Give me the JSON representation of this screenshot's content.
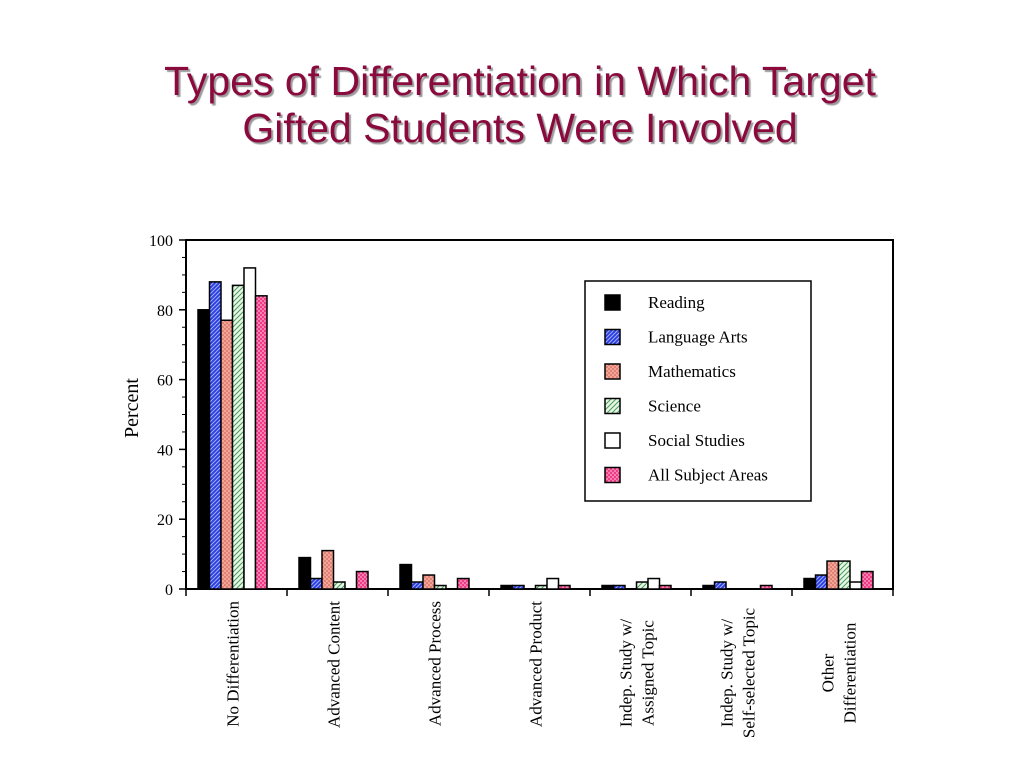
{
  "slide": {
    "title_line1": "Types of Differentiation in Which Target",
    "title_line2": "Gifted Students Were Involved"
  },
  "chart_data": {
    "type": "bar",
    "title": "",
    "xlabel": "",
    "ylabel": "Percent",
    "ylim": [
      0,
      100
    ],
    "yticks": [
      0,
      20,
      40,
      60,
      80,
      100
    ],
    "grid": false,
    "legend_position": "top-right",
    "categories": [
      "No Differentiation",
      "Advanced Content",
      "Advanced Process",
      "Advanced Product",
      "Indep. Study w/\nAssigned Topic",
      "Indep. Study w/\nSelf-selected Topic",
      "Other\nDifferentiation"
    ],
    "series": [
      {
        "name": "Reading",
        "color": "#000000",
        "pattern": "solid",
        "values": [
          80,
          9,
          7,
          1,
          1,
          1,
          3
        ]
      },
      {
        "name": "Language Arts",
        "color": "#2a3ce0",
        "pattern": "hatch",
        "values": [
          88,
          3,
          2,
          1,
          1,
          2,
          4
        ]
      },
      {
        "name": "Mathematics",
        "color": "#f39a8c",
        "pattern": "dots",
        "values": [
          77,
          11,
          4,
          0,
          0,
          0,
          8
        ]
      },
      {
        "name": "Science",
        "color": "#cfeecf",
        "pattern": "greenhatch",
        "values": [
          87,
          2,
          1,
          1,
          2,
          0,
          8
        ]
      },
      {
        "name": "Social Studies",
        "color": "#ffffff",
        "pattern": "outline",
        "values": [
          92,
          0,
          0,
          3,
          3,
          0,
          2
        ]
      },
      {
        "name": "All Subject Areas",
        "color": "#ef3b85",
        "pattern": "pinkdots",
        "values": [
          84,
          5,
          3,
          1,
          1,
          1,
          5
        ]
      }
    ]
  }
}
